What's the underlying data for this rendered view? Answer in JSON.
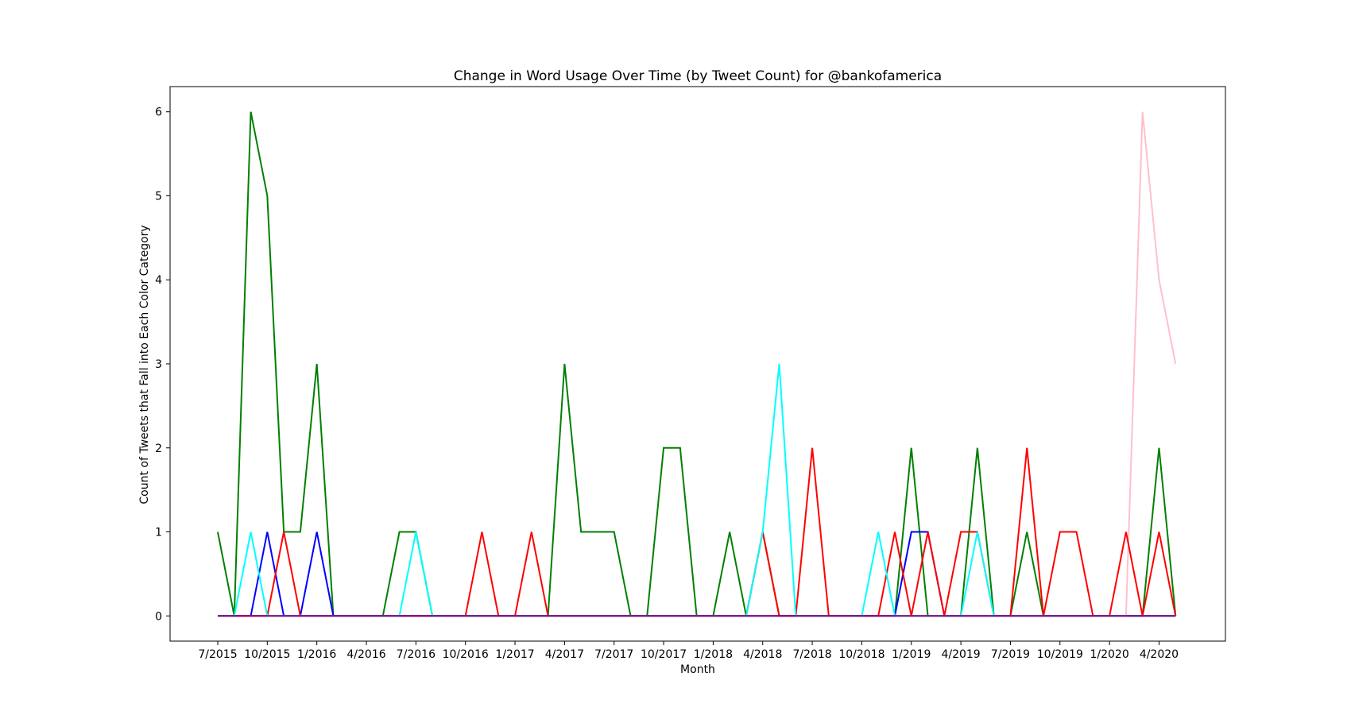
{
  "chart_data": {
    "type": "line",
    "title": "Change in Word Usage Over Time (by Tweet Count) for @bankofamerica",
    "xlabel": "Month",
    "ylabel": "Count of Tweets that Fall into Each Color Category",
    "x": [
      "7/2015",
      "8/2015",
      "9/2015",
      "10/2015",
      "11/2015",
      "12/2015",
      "1/2016",
      "2/2016",
      "3/2016",
      "4/2016",
      "5/2016",
      "6/2016",
      "7/2016",
      "8/2016",
      "9/2016",
      "10/2016",
      "11/2016",
      "12/2016",
      "1/2017",
      "2/2017",
      "3/2017",
      "4/2017",
      "5/2017",
      "6/2017",
      "7/2017",
      "8/2017",
      "9/2017",
      "10/2017",
      "11/2017",
      "12/2017",
      "1/2018",
      "2/2018",
      "3/2018",
      "4/2018",
      "5/2018",
      "6/2018",
      "7/2018",
      "8/2018",
      "9/2018",
      "10/2018",
      "11/2018",
      "12/2018",
      "1/2019",
      "2/2019",
      "3/2019",
      "4/2019",
      "5/2019",
      "6/2019",
      "7/2019",
      "8/2019",
      "9/2019",
      "10/2019",
      "11/2019",
      "12/2019",
      "1/2020",
      "2/2020",
      "3/2020",
      "4/2020",
      "5/2020"
    ],
    "xticks": [
      "7/2015",
      "10/2015",
      "1/2016",
      "4/2016",
      "7/2016",
      "10/2016",
      "1/2017",
      "4/2017",
      "7/2017",
      "10/2017",
      "1/2018",
      "4/2018",
      "7/2018",
      "10/2018",
      "1/2019",
      "4/2019",
      "7/2019",
      "10/2019",
      "1/2020",
      "4/2020"
    ],
    "yticks": [
      0,
      1,
      2,
      3,
      4,
      5,
      6
    ],
    "ylim": [
      -0.3,
      6.3
    ],
    "grid": false,
    "series": [
      {
        "color": "#008000",
        "values": [
          1,
          0,
          6,
          5,
          1,
          1,
          3,
          0,
          0,
          0,
          0,
          1,
          1,
          0,
          0,
          0,
          0,
          0,
          0,
          0,
          0,
          3,
          1,
          1,
          1,
          0,
          0,
          2,
          2,
          0,
          0,
          1,
          0,
          1,
          0,
          0,
          0,
          0,
          0,
          0,
          0,
          0,
          2,
          0,
          0,
          0,
          2,
          0,
          0,
          1,
          0,
          0,
          0,
          0,
          0,
          0,
          0,
          2,
          0
        ]
      },
      {
        "color": "#0000ff",
        "values": [
          0,
          0,
          0,
          1,
          0,
          0,
          1,
          0,
          0,
          0,
          0,
          0,
          0,
          0,
          0,
          0,
          0,
          0,
          0,
          0,
          0,
          0,
          0,
          0,
          0,
          0,
          0,
          0,
          0,
          0,
          0,
          0,
          0,
          0,
          0,
          0,
          0,
          0,
          0,
          0,
          0,
          0,
          1,
          1,
          0,
          0,
          0,
          0,
          0,
          0,
          0,
          0,
          0,
          0,
          0,
          0,
          0,
          0,
          0
        ]
      },
      {
        "color": "#ffc0cb",
        "values": [
          0,
          0,
          0,
          0,
          0,
          0,
          0,
          0,
          0,
          0,
          0,
          0,
          0,
          0,
          0,
          0,
          0,
          0,
          0,
          0,
          0,
          0,
          0,
          0,
          0,
          0,
          0,
          0,
          0,
          0,
          0,
          0,
          0,
          0,
          0,
          0,
          0,
          0,
          0,
          0,
          0,
          0,
          0,
          0,
          0,
          0,
          0,
          0,
          0,
          0,
          0,
          0,
          0,
          0,
          0,
          0,
          6,
          4,
          3
        ]
      },
      {
        "color": "#ff0000",
        "values": [
          0,
          0,
          0,
          0,
          1,
          0,
          0,
          0,
          0,
          0,
          0,
          0,
          0,
          0,
          0,
          0,
          1,
          0,
          0,
          1,
          0,
          0,
          0,
          0,
          0,
          0,
          0,
          0,
          0,
          0,
          0,
          0,
          0,
          1,
          0,
          0,
          2,
          0,
          0,
          0,
          0,
          1,
          0,
          1,
          0,
          1,
          1,
          0,
          0,
          2,
          0,
          1,
          1,
          0,
          0,
          1,
          0,
          1,
          0
        ]
      },
      {
        "color": "#00ffff",
        "values": [
          0,
          0,
          1,
          0,
          0,
          0,
          0,
          0,
          0,
          0,
          0,
          0,
          1,
          0,
          0,
          0,
          0,
          0,
          0,
          0,
          0,
          0,
          0,
          0,
          0,
          0,
          0,
          0,
          0,
          0,
          0,
          0,
          0,
          1,
          3,
          0,
          0,
          0,
          0,
          0,
          1,
          0,
          0,
          0,
          0,
          0,
          1,
          0,
          0,
          0,
          0,
          0,
          0,
          0,
          0,
          0,
          0,
          0,
          0
        ]
      },
      {
        "color": "#800080",
        "values": [
          0,
          0,
          0,
          0,
          0,
          0,
          0,
          0,
          0,
          0,
          0,
          0,
          0,
          0,
          0,
          0,
          0,
          0,
          0,
          0,
          0,
          0,
          0,
          0,
          0,
          0,
          0,
          0,
          0,
          0,
          0,
          0,
          0,
          0,
          0,
          0,
          0,
          0,
          0,
          0,
          0,
          0,
          0,
          0,
          0,
          0,
          0,
          0,
          0,
          0,
          0,
          0,
          0,
          0,
          0,
          0,
          0,
          0,
          0
        ]
      }
    ]
  }
}
